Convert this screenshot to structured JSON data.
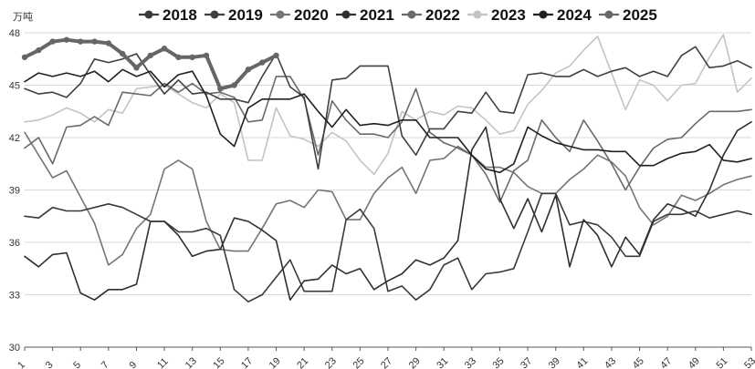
{
  "chart_data": {
    "type": "line",
    "unit": "万吨",
    "ylim": [
      30,
      48
    ],
    "yticks": [
      30,
      33,
      36,
      39,
      42,
      45,
      48
    ],
    "xlim": [
      1,
      53
    ],
    "xticks": [
      1,
      3,
      5,
      7,
      9,
      11,
      13,
      15,
      17,
      19,
      21,
      23,
      25,
      27,
      29,
      31,
      33,
      35,
      37,
      39,
      41,
      43,
      45,
      47,
      49,
      51,
      53
    ],
    "grid": "horizontal",
    "legend_position": "top",
    "series": [
      {
        "name": "2018",
        "color": "#3a3a3a",
        "values": [
          37.5,
          37.4,
          38.0,
          37.8,
          37.8,
          38.0,
          38.2,
          38.0,
          37.6,
          37.2,
          37.2,
          36.6,
          36.6,
          36.8,
          36.4,
          33.3,
          32.6,
          33.0,
          34.0,
          35.0,
          33.2,
          33.2,
          33.2,
          37.3,
          37.9,
          36.8,
          33.2,
          33.5,
          32.7,
          33.3,
          34.7,
          35.1,
          33.3,
          34.2,
          34.3,
          34.5,
          36.6,
          38.8,
          38.8,
          37.0,
          37.2,
          37.0,
          36.3,
          35.2,
          35.2,
          37.2,
          37.6,
          37.6,
          37.8,
          37.4,
          37.6,
          37.8,
          37.6
        ]
      },
      {
        "name": "2019",
        "color": "#404040",
        "values": [
          44.8,
          44.5,
          44.6,
          44.3,
          45.1,
          46.5,
          46.3,
          46.5,
          46.8,
          45.6,
          44.5,
          45.3,
          44.5,
          44.6,
          44.2,
          44.2,
          44.0,
          45.5,
          46.8,
          44.9,
          44.3,
          40.2,
          45.3,
          45.4,
          46.1,
          46.1,
          46.1,
          42.1,
          41.0,
          42.5,
          42.5,
          43.5,
          43.4,
          44.6,
          43.5,
          43.4,
          45.6,
          45.7,
          45.5,
          45.5,
          45.9,
          45.5,
          45.8,
          46.0,
          45.5,
          45.8,
          45.5,
          46.7,
          47.2,
          46.0,
          46.1,
          46.4,
          46.0
        ]
      },
      {
        "name": "2020",
        "color": "#757575",
        "values": [
          42.3,
          41.0,
          39.7,
          40.1,
          38.6,
          37.1,
          34.7,
          35.3,
          36.8,
          37.6,
          40.2,
          40.7,
          40.2,
          37.2,
          35.6,
          35.5,
          35.5,
          36.8,
          38.2,
          38.4,
          38.0,
          39.0,
          38.9,
          37.3,
          37.3,
          38.8,
          39.7,
          40.3,
          38.8,
          40.7,
          40.8,
          41.5,
          41.0,
          40.3,
          40.3,
          40.0,
          39.2,
          38.8,
          38.8,
          39.6,
          40.2,
          41.0,
          40.6,
          39.8,
          38.0,
          37.0,
          37.5,
          38.7,
          38.4,
          38.8,
          39.3,
          39.6,
          39.8
        ]
      },
      {
        "name": "2021",
        "color": "#2f2f2f",
        "values": [
          35.2,
          34.6,
          35.3,
          35.4,
          33.1,
          32.7,
          33.3,
          33.3,
          33.6,
          37.2,
          37.2,
          36.4,
          35.2,
          35.5,
          35.6,
          37.4,
          37.2,
          36.7,
          36.1,
          32.7,
          33.8,
          33.9,
          34.7,
          34.2,
          34.5,
          33.3,
          33.8,
          34.2,
          35.0,
          34.7,
          35.1,
          36.1,
          41.3,
          42.6,
          38.5,
          36.8,
          38.5,
          36.6,
          38.7,
          34.6,
          37.3,
          36.4,
          34.6,
          36.3,
          35.3,
          37.3,
          38.2,
          37.9,
          37.5,
          39.0,
          41.0,
          42.4,
          42.9
        ]
      },
      {
        "name": "2022",
        "color": "#6a6a6a",
        "values": [
          41.4,
          42.0,
          40.5,
          42.6,
          42.7,
          43.2,
          42.7,
          44.6,
          44.5,
          44.4,
          45.1,
          44.6,
          45.1,
          44.5,
          44.6,
          44.3,
          42.9,
          43.0,
          45.5,
          45.5,
          44.2,
          41.0,
          44.1,
          43.0,
          42.2,
          42.2,
          42.0,
          42.9,
          44.8,
          42.3,
          41.7,
          41.4,
          41.0,
          39.9,
          38.3,
          40.1,
          40.7,
          43.0,
          42.0,
          41.2,
          43.0,
          41.8,
          40.5,
          39.0,
          40.3,
          41.4,
          41.9,
          42.0,
          42.8,
          43.5,
          43.5,
          43.5,
          43.6
        ]
      },
      {
        "name": "2023",
        "color": "#c4c4c4",
        "values": [
          42.9,
          43.0,
          43.3,
          43.7,
          43.4,
          42.9,
          43.6,
          43.4,
          44.8,
          44.9,
          45.0,
          44.5,
          44.0,
          43.7,
          44.5,
          44.0,
          40.7,
          40.7,
          43.7,
          42.1,
          41.9,
          41.5,
          42.3,
          41.8,
          40.7,
          39.9,
          41.1,
          43.5,
          43.0,
          43.5,
          43.3,
          43.8,
          43.7,
          43.0,
          42.2,
          42.4,
          43.9,
          44.7,
          45.7,
          46.1,
          47.0,
          47.8,
          45.7,
          43.6,
          45.3,
          45.0,
          44.1,
          45.0,
          45.1,
          46.6,
          47.9,
          44.6,
          45.4
        ]
      },
      {
        "name": "2024",
        "color": "#202020",
        "values": [
          45.2,
          45.7,
          45.5,
          45.7,
          45.5,
          45.8,
          45.2,
          45.9,
          45.5,
          45.8,
          44.9,
          45.6,
          45.8,
          44.4,
          42.2,
          41.5,
          43.7,
          44.2,
          44.2,
          44.2,
          44.5,
          43.5,
          42.6,
          43.6,
          42.7,
          42.8,
          42.7,
          43.0,
          43.0,
          42.0,
          42.0,
          42.0,
          41.0,
          40.2,
          40.0,
          40.5,
          42.6,
          42.1,
          41.7,
          41.5,
          41.3,
          41.3,
          41.2,
          41.2,
          40.4,
          40.4,
          40.8,
          41.1,
          41.2,
          41.6,
          40.7,
          40.6,
          40.8
        ]
      },
      {
        "name": "2025",
        "color": "#666666",
        "values": [
          46.6,
          47.0,
          47.5,
          47.6,
          47.5,
          47.5,
          47.4,
          46.8,
          46.0,
          46.7,
          47.1,
          46.6,
          46.6,
          46.7,
          44.8,
          45.0,
          45.9,
          46.3,
          46.7
        ]
      }
    ]
  }
}
